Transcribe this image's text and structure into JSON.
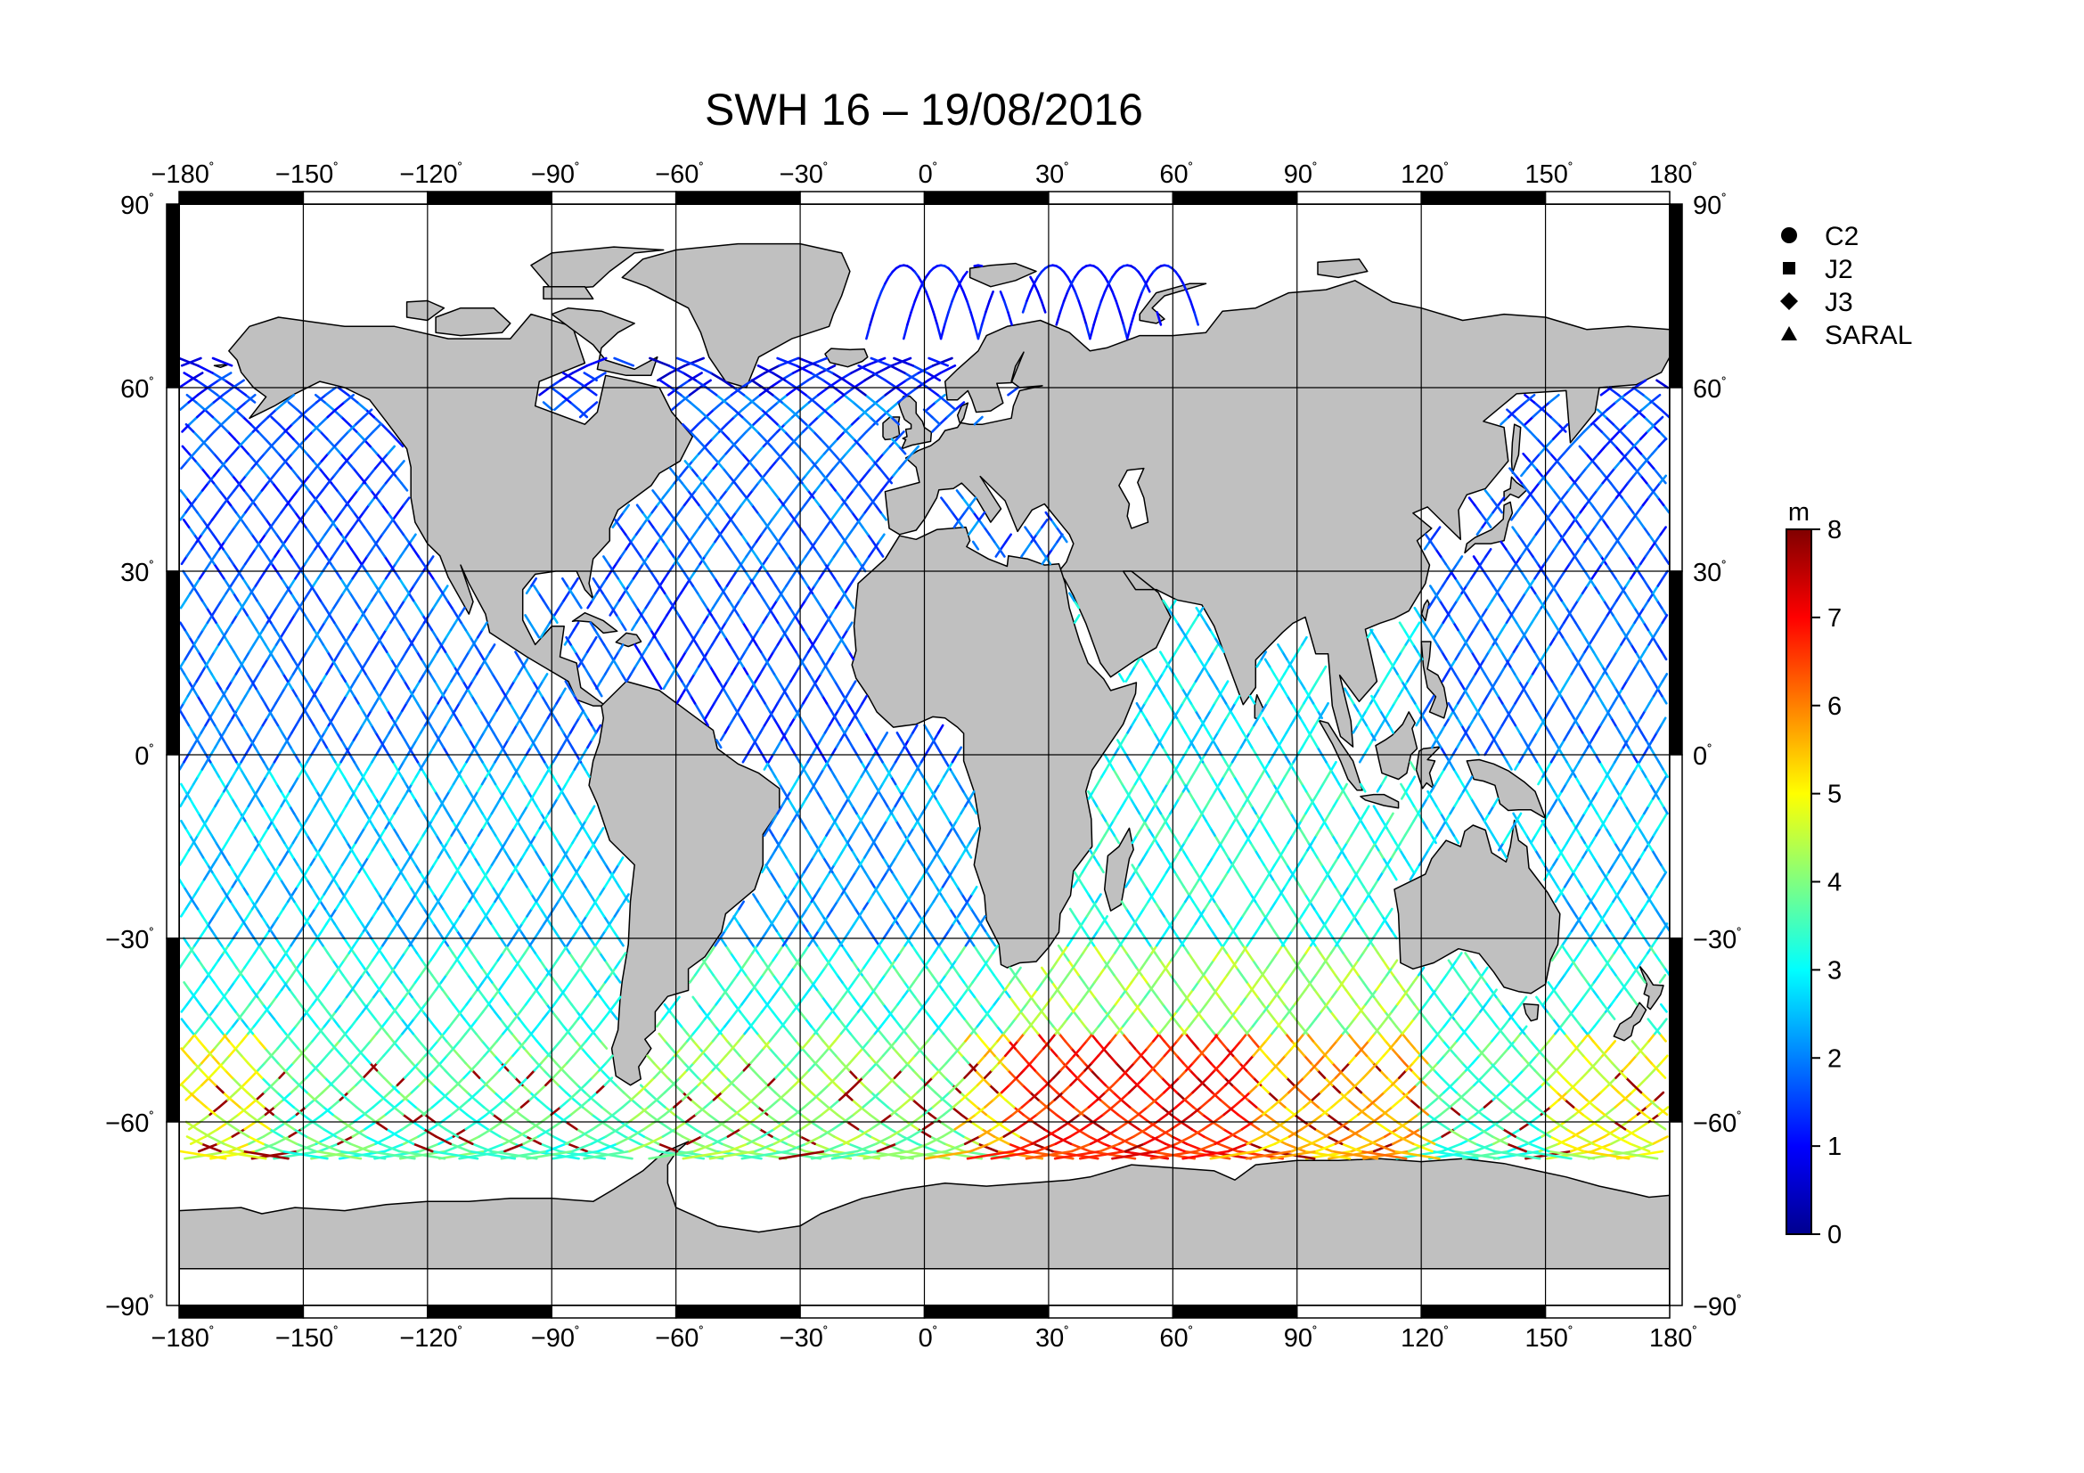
{
  "title": "SWH 16 – 19/08/2016",
  "degree_symbol": "˚",
  "chart_data": {
    "type": "map",
    "projection": "equirectangular",
    "quantity": "SWH",
    "xlim": [
      -180,
      180
    ],
    "ylim": [
      -90,
      90
    ],
    "x_ticks": [
      -180,
      -150,
      -120,
      -90,
      -60,
      -30,
      0,
      30,
      60,
      90,
      120,
      150,
      180
    ],
    "y_ticks": [
      90,
      60,
      30,
      0,
      -30,
      -60,
      -90
    ],
    "x_tick_labels": [
      "−180",
      "−150",
      "−120",
      "−90",
      "−60",
      "−30",
      "0",
      "30",
      "60",
      "90",
      "120",
      "150",
      "180"
    ],
    "y_tick_labels": [
      "90",
      "60",
      "30",
      "0",
      "−30",
      "−60",
      "−90"
    ],
    "grid": true,
    "land_color": "#c0c0c0",
    "ocean_color": "#ffffff",
    "legend": {
      "placement": "top-right",
      "items": [
        {
          "symbol": "circle",
          "label": "C2"
        },
        {
          "symbol": "square",
          "label": "J2"
        },
        {
          "symbol": "diamond",
          "label": "J3"
        },
        {
          "symbol": "triangle",
          "label": "SARAL"
        }
      ]
    },
    "colorbar": {
      "unit": "m",
      "range": [
        0,
        8
      ],
      "ticks": [
        0,
        1,
        2,
        3,
        4,
        5,
        6,
        7,
        8
      ],
      "colormap": [
        "#00008f",
        "#0000ff",
        "#0080ff",
        "#00ffff",
        "#80ff80",
        "#ffff00",
        "#ff8000",
        "#ff0000",
        "#800000"
      ]
    },
    "swh_by_latitude_band_m": [
      {
        "lat": [
          60,
          75
        ],
        "north_atlantic": 1.0,
        "north_pacific": 1.2
      },
      {
        "lat": [
          30,
          60
        ],
        "north_atlantic": 1.8,
        "north_pacific": 1.6
      },
      {
        "lat": [
          0,
          30
        ],
        "atlantic": 1.6,
        "pacific": 1.9,
        "indian": 2.8
      },
      {
        "lat": [
          -30,
          0
        ],
        "atlantic": 2.2,
        "pacific": 2.6,
        "indian": 3.2
      },
      {
        "lat": [
          -45,
          -30
        ],
        "atlantic": 3.3,
        "pacific": 3.2,
        "indian": 4.2
      },
      {
        "lat": [
          -66,
          -45
        ],
        "atlantic": 4.0,
        "pacific": 3.6,
        "indian": 5.6,
        "peak": 7.8
      }
    ]
  }
}
